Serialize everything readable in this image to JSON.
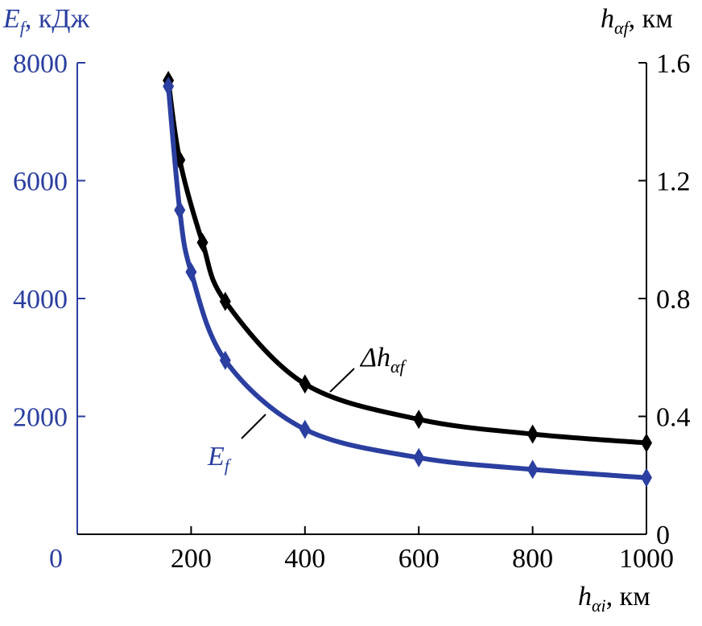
{
  "chart_data": {
    "type": "line",
    "xlabel": {
      "main": "h",
      "sub": "αi",
      "unit": ", км"
    },
    "ylabel_left": {
      "main": "E",
      "sub": "f",
      "unit": ", кДж"
    },
    "ylabel_right": {
      "main": "h",
      "sub": "αf",
      "unit": ", км"
    },
    "xlim": [
      0,
      1000
    ],
    "ylim_left": [
      0,
      8000
    ],
    "ylim_right": [
      0,
      1.6
    ],
    "x_ticks": [
      "200",
      "400",
      "600",
      "800",
      "1000"
    ],
    "x_tick_values": [
      200,
      400,
      600,
      800,
      1000
    ],
    "y_left_ticks": [
      "0",
      "2000",
      "4000",
      "6000",
      "8000"
    ],
    "y_left_tick_values": [
      0,
      2000,
      4000,
      6000,
      8000
    ],
    "y_right_ticks": [
      "0",
      "0.4",
      "0.8",
      "1.2",
      "1.6"
    ],
    "y_right_tick_values": [
      0,
      0.4,
      0.8,
      1.2,
      1.6
    ],
    "grid": false,
    "series": [
      {
        "name": "E_f",
        "label_main": "E",
        "label_sub": "f",
        "axis": "left",
        "color": "#2b3fa0",
        "x": [
          160,
          180,
          200,
          260,
          400,
          600,
          800,
          1000
        ],
        "y": [
          7600,
          5500,
          4450,
          2950,
          1780,
          1300,
          1100,
          960
        ]
      },
      {
        "name": "Δh_αf",
        "label_main": "Δh",
        "label_sub": "αf",
        "axis": "right",
        "color": "#000000",
        "x": [
          160,
          180,
          220,
          260,
          400,
          600,
          800,
          1000
        ],
        "y": [
          1.54,
          1.27,
          0.99,
          0.79,
          0.51,
          0.39,
          0.34,
          0.31
        ]
      }
    ]
  }
}
